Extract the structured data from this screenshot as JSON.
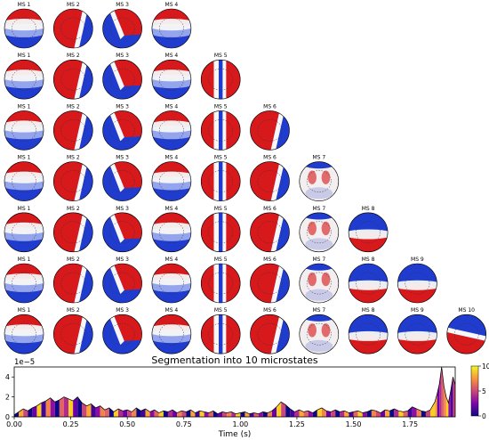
{
  "chart_data": [
    {
      "type": "heatmap",
      "description_kind": "microstate-topomap-grid",
      "rows": [
        {
          "n_states": 4,
          "maps": [
            "MS 1",
            "MS 2",
            "MS 3",
            "MS 4"
          ]
        },
        {
          "n_states": 5,
          "maps": [
            "MS 1",
            "MS 2",
            "MS 3",
            "MS 4",
            "MS 5"
          ]
        },
        {
          "n_states": 6,
          "maps": [
            "MS 1",
            "MS 2",
            "MS 3",
            "MS 4",
            "MS 5",
            "MS 6"
          ]
        },
        {
          "n_states": 7,
          "maps": [
            "MS 1",
            "MS 2",
            "MS 3",
            "MS 4",
            "MS 5",
            "MS 6",
            "MS 7"
          ]
        },
        {
          "n_states": 8,
          "maps": [
            "MS 1",
            "MS 2",
            "MS 3",
            "MS 4",
            "MS 5",
            "MS 6",
            "MS 7",
            "MS 8"
          ]
        },
        {
          "n_states": 9,
          "maps": [
            "MS 1",
            "MS 2",
            "MS 3",
            "MS 4",
            "MS 5",
            "MS 6",
            "MS 7",
            "MS 8",
            "MS 9"
          ]
        },
        {
          "n_states": 10,
          "maps": [
            "MS 1",
            "MS 2",
            "MS 3",
            "MS 4",
            "MS 5",
            "MS 6",
            "MS 7",
            "MS 8",
            "MS 9",
            "MS 10"
          ]
        }
      ],
      "map_patterns": {
        "MS 1": {
          "kind": "frontal-back",
          "red_side": "front"
        },
        "MS 2": {
          "kind": "diagonal",
          "red_side": "left"
        },
        "MS 3": {
          "kind": "diagonal",
          "red_side": "right"
        },
        "MS 4": {
          "kind": "frontal-back",
          "red_side": "front"
        },
        "MS 5": {
          "kind": "midline-stripe"
        },
        "MS 6": {
          "kind": "diagonal",
          "red_side": "left"
        },
        "MS 7": {
          "kind": "weak-frontal"
        },
        "MS 8": {
          "kind": "frontal-back",
          "red_side": "back"
        },
        "MS 9": {
          "kind": "frontal-back",
          "red_side": "back"
        },
        "MS 10": {
          "kind": "diagonal",
          "red_side": "back-left"
        }
      },
      "colors": {
        "positive": "#d7191c",
        "negative": "#1f3ccf",
        "neutral": "#f7f7f7"
      }
    },
    {
      "type": "area",
      "title": "Segmentation into 10 microstates",
      "xlabel": "Time (s)",
      "ylabel": "",
      "y_multiplier": "1e−5",
      "xlim": [
        0,
        1.95
      ],
      "ylim": [
        0,
        5
      ],
      "x_ticks": [
        0.0,
        0.25,
        0.5,
        0.75,
        1.0,
        1.25,
        1.5,
        1.75
      ],
      "x_tick_labels": [
        "0.00",
        "0.25",
        "0.50",
        "0.75",
        "1.00",
        "1.25",
        "1.50",
        "1.75"
      ],
      "y_ticks": [
        0,
        2,
        4
      ],
      "y_tick_labels": [
        "0",
        "2",
        "4"
      ],
      "gfp_envelope": {
        "x": [
          0.0,
          0.02,
          0.04,
          0.06,
          0.08,
          0.1,
          0.12,
          0.14,
          0.16,
          0.18,
          0.2,
          0.22,
          0.24,
          0.26,
          0.28,
          0.3,
          0.32,
          0.34,
          0.36,
          0.38,
          0.4,
          0.42,
          0.44,
          0.46,
          0.48,
          0.5,
          0.52,
          0.54,
          0.56,
          0.58,
          0.6,
          0.62,
          0.64,
          0.66,
          0.68,
          0.7,
          0.72,
          0.74,
          0.76,
          0.78,
          0.8,
          0.82,
          0.84,
          0.86,
          0.88,
          0.9,
          0.92,
          0.94,
          0.96,
          0.98,
          1.0,
          1.02,
          1.04,
          1.06,
          1.08,
          1.1,
          1.12,
          1.14,
          1.16,
          1.18,
          1.2,
          1.22,
          1.24,
          1.26,
          1.28,
          1.3,
          1.32,
          1.34,
          1.36,
          1.38,
          1.4,
          1.42,
          1.44,
          1.46,
          1.48,
          1.5,
          1.52,
          1.54,
          1.56,
          1.58,
          1.6,
          1.62,
          1.64,
          1.66,
          1.68,
          1.7,
          1.72,
          1.74,
          1.76,
          1.78,
          1.8,
          1.82,
          1.84,
          1.86,
          1.87,
          1.88,
          1.89,
          1.9,
          1.91,
          1.92,
          1.93,
          1.94,
          1.95
        ],
        "y": [
          0.2,
          0.5,
          0.8,
          0.6,
          0.9,
          1.1,
          1.4,
          1.6,
          1.9,
          1.5,
          1.7,
          2.0,
          1.8,
          1.6,
          2.0,
          1.4,
          1.1,
          1.3,
          0.9,
          1.1,
          0.7,
          0.9,
          0.5,
          0.8,
          0.6,
          0.7,
          0.5,
          0.9,
          0.6,
          0.8,
          0.5,
          0.7,
          0.4,
          0.6,
          0.5,
          0.7,
          0.4,
          0.6,
          0.5,
          0.7,
          0.4,
          0.6,
          0.5,
          0.4,
          0.6,
          0.3,
          0.5,
          0.4,
          0.5,
          0.3,
          0.4,
          0.5,
          0.3,
          0.4,
          0.3,
          0.5,
          0.4,
          0.6,
          1.0,
          1.5,
          1.2,
          0.8,
          0.5,
          0.7,
          0.5,
          0.6,
          0.4,
          0.7,
          0.9,
          0.6,
          0.5,
          0.7,
          0.5,
          0.6,
          0.4,
          0.5,
          0.6,
          0.4,
          0.5,
          0.7,
          0.6,
          0.4,
          0.7,
          0.6,
          0.8,
          0.6,
          0.5,
          0.6,
          1.0,
          0.8,
          0.6,
          0.5,
          0.7,
          1.5,
          2.3,
          3.3,
          5.0,
          3.1,
          2.0,
          1.4,
          2.6,
          4.0,
          3.2
        ]
      },
      "colorbar": {
        "min": 0,
        "max": 10,
        "ticks": [
          0,
          5,
          10
        ],
        "tick_labels": [
          "0",
          "5",
          "10"
        ],
        "colormap": "plasma"
      }
    }
  ]
}
